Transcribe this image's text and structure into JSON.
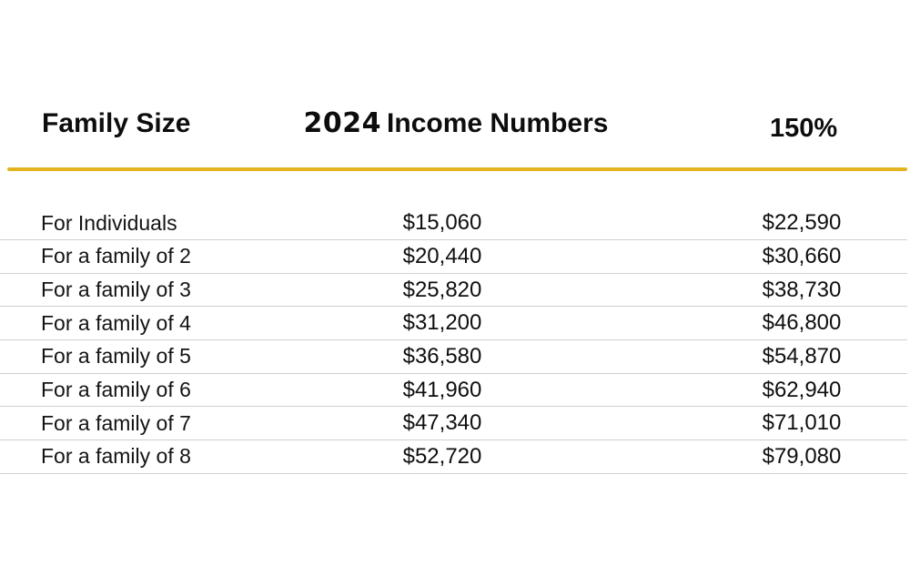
{
  "page": {
    "background": "#ffffff",
    "divider_color": "#E3B41F",
    "separator_color": "#cfcfcf"
  },
  "header": {
    "col1": "Family Size",
    "col2_year": "2024",
    "col2_label": "Income Numbers",
    "col3": "150%"
  },
  "table": {
    "rows": [
      {
        "label": "For Individuals",
        "income": "$15,060",
        "pct150": "$22,590"
      },
      {
        "label": "For a family of 2",
        "income": "$20,440",
        "pct150": "$30,660"
      },
      {
        "label": "For a family of 3",
        "income": "$25,820",
        "pct150": "$38,730"
      },
      {
        "label": "For a family of 4",
        "income": "$31,200",
        "pct150": "$46,800"
      },
      {
        "label": "For a family of 5",
        "income": "$36,580",
        "pct150": "$54,870"
      },
      {
        "label": "For a family of 6",
        "income": "$41,960",
        "pct150": "$62,940"
      },
      {
        "label": "For a family of 7",
        "income": "$47,340",
        "pct150": "$71,010"
      },
      {
        "label": "For a family of 8",
        "income": "$52,720",
        "pct150": "$79,080"
      }
    ]
  },
  "chart_data": {
    "type": "table",
    "title": "2024 Income Numbers",
    "columns": [
      "Family Size",
      "2024 Income Numbers",
      "150%"
    ],
    "rows": [
      [
        "For Individuals",
        15060,
        22590
      ],
      [
        "For a family of 2",
        20440,
        30660
      ],
      [
        "For a family of 3",
        25820,
        38730
      ],
      [
        "For a family of 4",
        31200,
        46800
      ],
      [
        "For a family of 5",
        36580,
        54870
      ],
      [
        "For a family of 6",
        41960,
        62940
      ],
      [
        "For a family of 7",
        47340,
        71010
      ],
      [
        "For a family of 8",
        52720,
        79080
      ]
    ],
    "notes": "Third column equals 150% of second column; values shown with $ and thousands separators"
  }
}
